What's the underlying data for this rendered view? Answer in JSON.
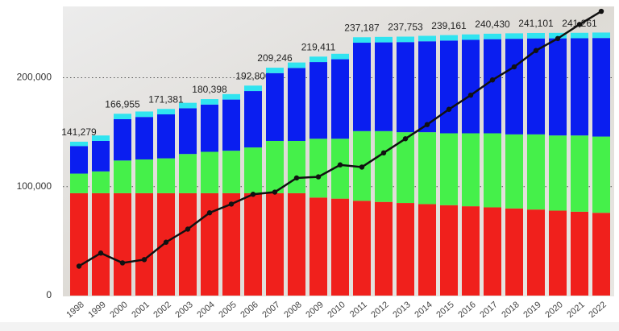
{
  "chart_data": {
    "type": "stacked-bar-line",
    "categories": [
      "1998",
      "1999",
      "2000",
      "2001",
      "2002",
      "2003",
      "2004",
      "2005",
      "2006",
      "2007",
      "2008",
      "2009",
      "2010",
      "2011",
      "2012",
      "2013",
      "2014",
      "2015",
      "2016",
      "2017",
      "2018",
      "2019",
      "2020",
      "2021",
      "2022"
    ],
    "series": [
      {
        "color": "#f0201c",
        "values": [
          94000,
          94000,
          94000,
          94000,
          94000,
          94000,
          94000,
          94000,
          94000,
          94000,
          94000,
          90000,
          89000,
          87000,
          86000,
          85000,
          84000,
          83000,
          82000,
          81000,
          80000,
          79000,
          78000,
          77000,
          76000
        ]
      },
      {
        "color": "#45f04a",
        "values": [
          18000,
          20000,
          30000,
          31000,
          32000,
          36000,
          38000,
          39000,
          42000,
          48000,
          48000,
          54000,
          55000,
          64000,
          65000,
          65000,
          66000,
          66000,
          67000,
          68000,
          68000,
          69000,
          69000,
          70000,
          70000
        ]
      },
      {
        "color": "#0a1ef0",
        "values": [
          25279,
          28000,
          37955,
          39000,
          40381,
          42000,
          43398,
          47000,
          51800,
          62246,
          67000,
          70411,
          73000,
          81187,
          81500,
          82753,
          83500,
          85161,
          85800,
          86430,
          87800,
          88101,
          89200,
          89261,
          90500
        ]
      },
      {
        "color": "#30e4f0",
        "values": [
          4000,
          5000,
          5000,
          5000,
          5000,
          5000,
          5000,
          5000,
          5000,
          5000,
          5000,
          5000,
          5000,
          5000,
          5000,
          5000,
          5000,
          5000,
          5000,
          5000,
          5000,
          5000,
          5000,
          5000,
          5000
        ]
      }
    ],
    "totals": {
      "values": [
        141279,
        null,
        166955,
        null,
        171381,
        null,
        180398,
        null,
        192800,
        209246,
        null,
        219411,
        null,
        237187,
        null,
        237753,
        null,
        239161,
        null,
        240430,
        null,
        241101,
        null,
        241261,
        null
      ],
      "value_labels": [
        "141,279",
        null,
        "166,955",
        null,
        "171,381",
        null,
        "180,398",
        null,
        "192,800",
        "209,246",
        null,
        "219,411",
        null,
        "237,187",
        null,
        "237,753",
        null,
        "239,161",
        null,
        "240,430",
        null,
        "241,101",
        null,
        "241,261",
        null
      ]
    },
    "line": {
      "color": "#111111",
      "values": [
        27000,
        39000,
        30000,
        33000,
        49000,
        61000,
        76000,
        84000,
        93000,
        95000,
        108000,
        109000,
        120000,
        118000,
        131000,
        144000,
        157000,
        171000,
        184000,
        198000,
        210000,
        225000,
        236000,
        249000,
        261000
      ]
    },
    "ylim": [
      0,
      264000
    ],
    "yticks": [
      0,
      {
        "value": 100000,
        "label": "100,000"
      },
      {
        "value": 200000,
        "label": "200,000"
      }
    ],
    "grid": true
  }
}
